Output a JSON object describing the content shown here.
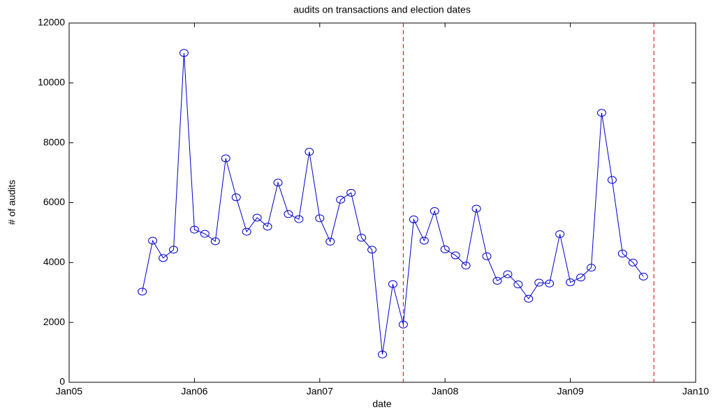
{
  "chart_data": {
    "type": "line",
    "title": "audits on transactions and election dates",
    "xlabel": "date",
    "ylabel": "# of audits",
    "x": [
      "2005-08",
      "2005-09",
      "2005-10",
      "2005-11",
      "2005-12",
      "2006-01",
      "2006-02",
      "2006-03",
      "2006-04",
      "2006-05",
      "2006-06",
      "2006-07",
      "2006-08",
      "2006-09",
      "2006-10",
      "2006-11",
      "2006-12",
      "2007-01",
      "2007-02",
      "2007-03",
      "2007-04",
      "2007-05",
      "2007-06",
      "2007-07",
      "2007-08",
      "2007-09",
      "2007-10",
      "2007-11",
      "2007-12",
      "2008-01",
      "2008-02",
      "2008-03",
      "2008-04",
      "2008-05",
      "2008-06",
      "2008-07",
      "2008-08",
      "2008-09",
      "2008-10",
      "2008-11",
      "2008-12",
      "2009-01",
      "2009-02",
      "2009-03",
      "2009-04",
      "2009-05",
      "2009-06",
      "2009-07",
      "2009-08"
    ],
    "values": [
      3030,
      4730,
      4150,
      4430,
      11000,
      5100,
      4960,
      4710,
      7480,
      6180,
      5030,
      5500,
      5200,
      6670,
      5620,
      5450,
      7700,
      5480,
      4700,
      6100,
      6330,
      4830,
      4430,
      930,
      3280,
      1930,
      5440,
      4730,
      5720,
      4440,
      4240,
      3900,
      5800,
      4210,
      3390,
      3610,
      3270,
      2790,
      3330,
      3300,
      4950,
      3340,
      3500,
      3830,
      9000,
      6760,
      4300,
      4000,
      3530
    ],
    "color": "#0000cc",
    "marker": "circle",
    "xlim": [
      "2005-01",
      "2010-01"
    ],
    "xticks": [
      {
        "value": "2005-01",
        "label": "Jan05"
      },
      {
        "value": "2006-01",
        "label": "Jan06"
      },
      {
        "value": "2007-01",
        "label": "Jan07"
      },
      {
        "value": "2008-01",
        "label": "Jan08"
      },
      {
        "value": "2009-01",
        "label": "Jan09"
      },
      {
        "value": "2010-01",
        "label": "Jan10"
      }
    ],
    "ylim": [
      0,
      12000
    ],
    "yticks": [
      0,
      2000,
      4000,
      6000,
      8000,
      10000,
      12000
    ],
    "grid": false,
    "vlines": [
      "2007-09",
      "2009-09"
    ],
    "vline_color": "#cc0000"
  }
}
